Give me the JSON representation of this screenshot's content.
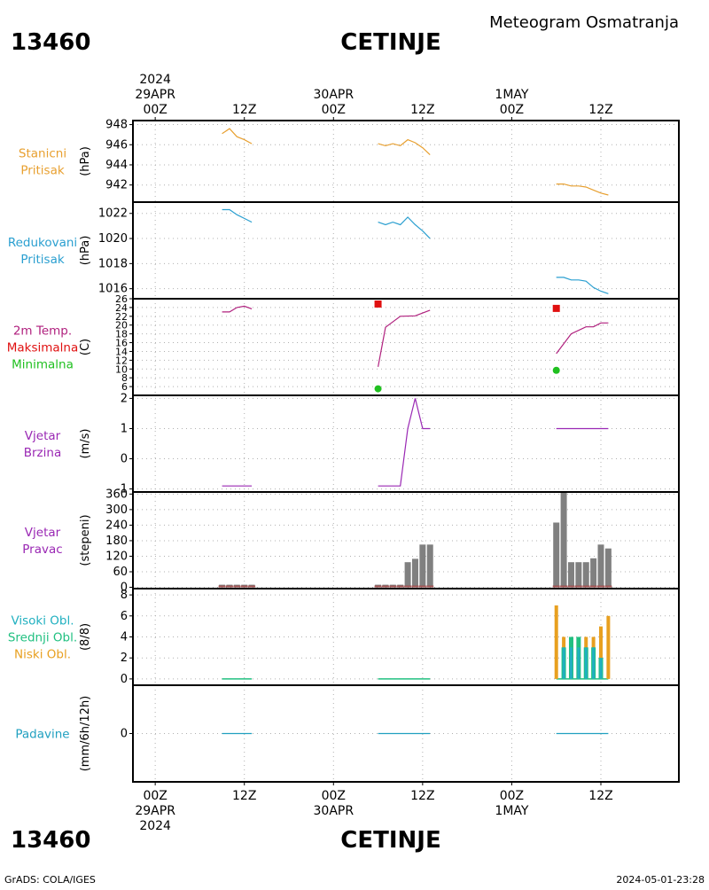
{
  "header": {
    "station_id": "13460",
    "station_name": "CETINJE",
    "title": "Meteogram Osmatranja"
  },
  "footer": {
    "credit": "GrADS: COLA/IGES",
    "timestamp": "2024-05-01-23:28"
  },
  "time_axis": {
    "top_labels": [
      {
        "hour": 0,
        "lines": [
          "2024",
          "29APR",
          "00Z"
        ]
      },
      {
        "hour": 12,
        "lines": [
          "12Z"
        ]
      },
      {
        "hour": 24,
        "lines": [
          "30APR",
          "00Z"
        ]
      },
      {
        "hour": 36,
        "lines": [
          "12Z"
        ]
      },
      {
        "hour": 48,
        "lines": [
          "1MAY",
          "00Z"
        ]
      },
      {
        "hour": 60,
        "lines": [
          "12Z"
        ]
      }
    ],
    "bottom_labels": [
      {
        "hour": 0,
        "lines": [
          "00Z",
          "29APR",
          "2024"
        ]
      },
      {
        "hour": 12,
        "lines": [
          "12Z"
        ]
      },
      {
        "hour": 24,
        "lines": [
          "00Z",
          "30APR"
        ]
      },
      {
        "hour": 36,
        "lines": [
          "12Z"
        ]
      },
      {
        "hour": 48,
        "lines": [
          "00Z",
          "1MAY"
        ]
      },
      {
        "hour": 60,
        "lines": [
          "12Z"
        ]
      }
    ],
    "range_hours": [
      -3,
      70.5
    ]
  },
  "colors": {
    "pressure": "#e8a030",
    "reduced": "#2a9fd0",
    "temp": "#b0207e",
    "max": "#e01010",
    "min": "#20c020",
    "wind": "#9a28b4",
    "bars": "#808080",
    "bar_base": "#a05050",
    "high_cloud": "#20b0c0",
    "mid_cloud": "#20c080",
    "low_cloud": "#e8a020",
    "precip": "#20a0c0"
  },
  "chart_data": [
    {
      "type": "line",
      "panel": "station_pressure",
      "labels": [
        "Stanicni",
        "Pritisak"
      ],
      "label_colors": [
        "#e8a030",
        "#e8a030"
      ],
      "ylabel": "(hPa)",
      "ylim": [
        940.3,
        948.4
      ],
      "yticks": [
        942,
        944,
        946,
        948
      ],
      "series": [
        {
          "color": "#e8a030",
          "segments": [
            [
              [
                9,
                947.1
              ],
              [
                10,
                947.6
              ],
              [
                11,
                946.8
              ],
              [
                12,
                946.5
              ],
              [
                13,
                946.1
              ]
            ],
            [
              [
                30,
                946.1
              ],
              [
                31,
                945.9
              ],
              [
                32,
                946.1
              ],
              [
                33,
                945.9
              ],
              [
                34,
                946.5
              ],
              [
                35,
                946.2
              ],
              [
                36,
                945.7
              ],
              [
                37,
                945.0
              ]
            ],
            [
              [
                54,
                942.1
              ],
              [
                55,
                942.1
              ],
              [
                56,
                941.9
              ],
              [
                57,
                941.9
              ],
              [
                58,
                941.8
              ],
              [
                59,
                941.5
              ],
              [
                60,
                941.2
              ],
              [
                61,
                941.0
              ]
            ]
          ]
        }
      ]
    },
    {
      "type": "line",
      "panel": "reduced_pressure",
      "labels": [
        "Redukovani",
        "Pritisak"
      ],
      "label_colors": [
        "#2a9fd0",
        "#2a9fd0"
      ],
      "ylabel": "(hPa)",
      "ylim": [
        1015.2,
        1022.9
      ],
      "yticks": [
        1016,
        1018,
        1020,
        1022
      ],
      "series": [
        {
          "color": "#2a9fd0",
          "segments": [
            [
              [
                9,
                1022.3
              ],
              [
                10,
                1022.3
              ],
              [
                11,
                1021.9
              ],
              [
                12,
                1021.6
              ],
              [
                13,
                1021.3
              ]
            ],
            [
              [
                30,
                1021.3
              ],
              [
                31,
                1021.1
              ],
              [
                32,
                1021.3
              ],
              [
                33,
                1021.1
              ],
              [
                34,
                1021.7
              ],
              [
                35,
                1021.1
              ],
              [
                36,
                1020.6
              ],
              [
                37,
                1020.0
              ]
            ],
            [
              [
                54,
                1016.9
              ],
              [
                55,
                1016.9
              ],
              [
                56,
                1016.7
              ],
              [
                57,
                1016.7
              ],
              [
                58,
                1016.6
              ],
              [
                59,
                1016.1
              ],
              [
                60,
                1015.8
              ],
              [
                61,
                1015.6
              ]
            ]
          ]
        }
      ]
    },
    {
      "type": "line",
      "panel": "temperature",
      "labels": [
        "2m Temp.",
        "Maksimalna",
        "Minimalna"
      ],
      "label_colors": [
        "#b0207e",
        "#e01010",
        "#20c020"
      ],
      "ylabel": "(C)",
      "ylim": [
        4,
        26
      ],
      "yticks": [
        6,
        8,
        10,
        12,
        14,
        16,
        18,
        20,
        22,
        24,
        26
      ],
      "series": [
        {
          "color": "#b0207e",
          "segments": [
            [
              [
                9,
                23
              ],
              [
                10,
                23
              ],
              [
                11,
                24
              ],
              [
                12,
                24.3
              ],
              [
                13,
                23.7
              ]
            ],
            [
              [
                30,
                10.5
              ],
              [
                31,
                19.5
              ],
              [
                33,
                22
              ],
              [
                35,
                22.1
              ],
              [
                37,
                23.4
              ]
            ],
            [
              [
                54,
                13.5
              ],
              [
                56,
                18
              ],
              [
                58,
                19.6
              ],
              [
                59,
                19.6
              ],
              [
                60,
                20.5
              ],
              [
                61,
                20.5
              ]
            ]
          ]
        }
      ],
      "max_points": [
        {
          "x": 30,
          "y": 24.8
        },
        {
          "x": 54,
          "y": 23.8
        }
      ],
      "min_points": [
        {
          "x": 30,
          "y": 5.5
        },
        {
          "x": 54,
          "y": 9.7
        }
      ]
    },
    {
      "type": "line",
      "panel": "wind_speed",
      "labels": [
        "Vjetar",
        "Brzina"
      ],
      "label_colors": [
        "#9a28b4",
        "#9a28b4"
      ],
      "ylabel": "(m/s)",
      "ylim": [
        -1.1,
        2.1
      ],
      "yticks": [
        -1,
        0,
        1,
        2
      ],
      "series": [
        {
          "color": "#9a28b4",
          "segments": [
            [
              [
                9,
                -0.9
              ],
              [
                13,
                -0.9
              ]
            ],
            [
              [
                30,
                -0.9
              ],
              [
                33,
                -0.9
              ],
              [
                34,
                1
              ],
              [
                35,
                2
              ],
              [
                36,
                1
              ],
              [
                37,
                1
              ]
            ],
            [
              [
                54,
                1
              ],
              [
                61,
                1
              ]
            ]
          ]
        }
      ]
    },
    {
      "type": "bar",
      "panel": "wind_direction",
      "labels": [
        "Vjetar",
        "Pravac"
      ],
      "label_colors": [
        "#9a28b4",
        "#9a28b4"
      ],
      "ylabel": "(stepeni)",
      "ylim": [
        -5,
        368
      ],
      "yticks": [
        0,
        60,
        120,
        180,
        240,
        300,
        360
      ],
      "bars": [
        {
          "x": 9,
          "value": 10
        },
        {
          "x": 10,
          "value": 10
        },
        {
          "x": 11,
          "value": 10
        },
        {
          "x": 12,
          "value": 10
        },
        {
          "x": 13,
          "value": 10
        },
        {
          "x": 30,
          "value": 10
        },
        {
          "x": 31,
          "value": 10
        },
        {
          "x": 32,
          "value": 10
        },
        {
          "x": 33,
          "value": 10
        },
        {
          "x": 34,
          "value": 97
        },
        {
          "x": 35,
          "value": 110
        },
        {
          "x": 36,
          "value": 165
        },
        {
          "x": 37,
          "value": 165
        },
        {
          "x": 54,
          "value": 250
        },
        {
          "x": 55,
          "value": 365
        },
        {
          "x": 56,
          "value": 97
        },
        {
          "x": 57,
          "value": 97
        },
        {
          "x": 58,
          "value": 97
        },
        {
          "x": 59,
          "value": 112
        },
        {
          "x": 60,
          "value": 165
        },
        {
          "x": 61,
          "value": 150
        }
      ]
    },
    {
      "type": "bar",
      "panel": "clouds",
      "labels": [
        "Visoki Obl.",
        "Srednji Obl.",
        "Niski Obl."
      ],
      "label_colors": [
        "#20b0c0",
        "#20c080",
        "#e8a020"
      ],
      "ylabel": "(8/8)",
      "ylim": [
        -0.6,
        8.6
      ],
      "yticks": [
        0,
        2,
        4,
        6,
        8
      ],
      "low": [
        {
          "x": 54,
          "value": 7
        },
        {
          "x": 55,
          "value": 4
        },
        {
          "x": 56,
          "value": 4
        },
        {
          "x": 57,
          "value": 4
        },
        {
          "x": 58,
          "value": 4
        },
        {
          "x": 59,
          "value": 4
        },
        {
          "x": 60,
          "value": 5
        },
        {
          "x": 61,
          "value": 6
        }
      ],
      "mid": [
        {
          "x": 55,
          "value": 3
        },
        {
          "x": 56,
          "value": 4
        },
        {
          "x": 57,
          "value": 4
        },
        {
          "x": 58,
          "value": 3
        },
        {
          "x": 59,
          "value": 3
        },
        {
          "x": 60,
          "value": 2
        }
      ],
      "high": [
        {
          "x": 55,
          "value": 3
        },
        {
          "x": 56,
          "value": 3
        },
        {
          "x": 57,
          "value": 3
        },
        {
          "x": 58,
          "value": 3
        },
        {
          "x": 59,
          "value": 3
        },
        {
          "x": 60,
          "value": 2
        }
      ],
      "zero_segments": [
        [
          9,
          13
        ],
        [
          30,
          37
        ],
        [
          54,
          61
        ]
      ]
    },
    {
      "type": "line",
      "panel": "precipitation",
      "labels": [
        "Padavine"
      ],
      "label_colors": [
        "#20a0c0"
      ],
      "ylabel": "(mm/6h/12h)",
      "ylim": [
        -1,
        1
      ],
      "yticks": [
        0
      ],
      "series": [
        {
          "color": "#20a0c0",
          "segments": [
            [
              [
                9,
                0
              ],
              [
                13,
                0
              ]
            ],
            [
              [
                30,
                0
              ],
              [
                37,
                0
              ]
            ],
            [
              [
                54,
                0
              ],
              [
                61,
                0
              ]
            ]
          ]
        }
      ]
    }
  ]
}
